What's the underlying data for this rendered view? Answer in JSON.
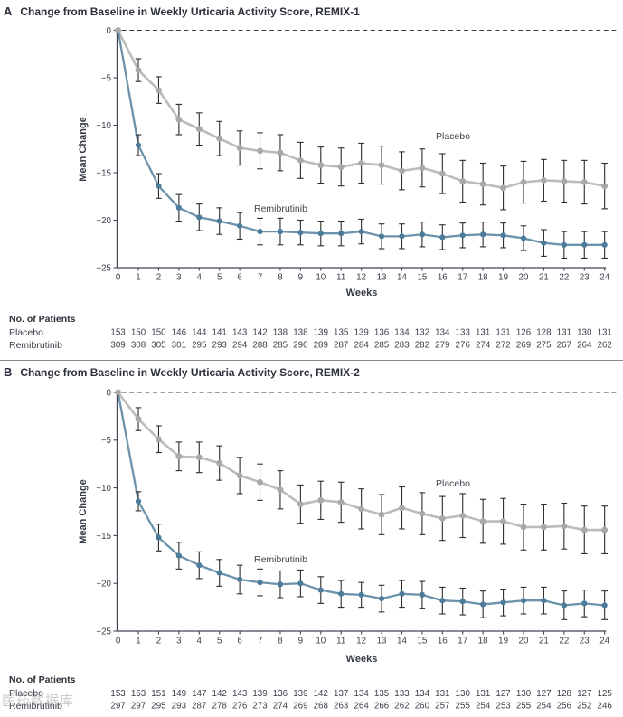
{
  "watermark": {
    "text": "医药数据库"
  },
  "colors": {
    "placebo_line": "#bcbcba",
    "placebo_marker": "#a9a9a7",
    "remibrutinib_line": "#6c93ab",
    "remibrutinib_marker": "#4d7c9b",
    "error_bar": "#2c2c2c",
    "axis": "#3f4450",
    "dash": "#3c3c3c",
    "text": "#3a3f4a"
  },
  "chart_data": [
    {
      "panel": "A",
      "type": "line",
      "title": "Change from Baseline in Weekly Urticaria Activity Score, REMIX-1",
      "xlabel": "Weeks",
      "ylabel": "Mean Change",
      "ylim": [
        -25,
        0
      ],
      "yticks": [
        0,
        -5,
        -10,
        -15,
        -20,
        -25
      ],
      "weeks": [
        0,
        1,
        2,
        3,
        4,
        5,
        6,
        7,
        8,
        9,
        10,
        11,
        12,
        13,
        14,
        15,
        16,
        17,
        18,
        19,
        20,
        21,
        22,
        23,
        24
      ],
      "zero_line_dashed": true,
      "series": [
        {
          "name": "Placebo",
          "values": [
            0,
            -4.2,
            -6.3,
            -9.4,
            -10.4,
            -11.4,
            -12.4,
            -12.7,
            -12.9,
            -13.7,
            -14.2,
            -14.4,
            -14.0,
            -14.2,
            -14.8,
            -14.5,
            -15.1,
            -15.9,
            -16.2,
            -16.6,
            -16.0,
            -15.8,
            -15.9,
            -16.0,
            -16.4
          ],
          "errors": [
            0,
            1.2,
            1.4,
            1.6,
            1.7,
            1.8,
            1.8,
            1.9,
            1.9,
            1.9,
            1.9,
            2.0,
            2.1,
            2.0,
            2.0,
            2.0,
            2.1,
            2.2,
            2.2,
            2.3,
            2.2,
            2.2,
            2.2,
            2.3,
            2.4
          ]
        },
        {
          "name": "Remibrutinib",
          "values": [
            0,
            -12.1,
            -16.4,
            -18.7,
            -19.7,
            -20.1,
            -20.6,
            -21.2,
            -21.2,
            -21.3,
            -21.4,
            -21.4,
            -21.2,
            -21.7,
            -21.7,
            -21.5,
            -21.8,
            -21.6,
            -21.5,
            -21.6,
            -21.9,
            -22.4,
            -22.6,
            -22.6,
            -22.6
          ],
          "errors": [
            0,
            1.1,
            1.3,
            1.4,
            1.4,
            1.4,
            1.4,
            1.4,
            1.4,
            1.3,
            1.3,
            1.3,
            1.3,
            1.3,
            1.3,
            1.3,
            1.3,
            1.3,
            1.3,
            1.3,
            1.3,
            1.4,
            1.4,
            1.4,
            1.4
          ]
        }
      ],
      "patients": {
        "label": "No. of Patients",
        "rows": [
          {
            "name": "Placebo",
            "counts": [
              153,
              150,
              150,
              146,
              144,
              141,
              143,
              142,
              138,
              138,
              139,
              135,
              139,
              136,
              134,
              132,
              134,
              133,
              131,
              131,
              126,
              128,
              131,
              130,
              131
            ]
          },
          {
            "name": "Remibrutinib",
            "counts": [
              309,
              308,
              305,
              301,
              295,
              293,
              294,
              288,
              285,
              290,
              289,
              287,
              284,
              285,
              283,
              282,
              279,
              276,
              274,
              272,
              269,
              275,
              267,
              264,
              262
            ]
          }
        ]
      }
    },
    {
      "panel": "B",
      "type": "line",
      "title": "Change from Baseline in Weekly Urticaria Activity Score, REMIX-2",
      "xlabel": "Weeks",
      "ylabel": "Mean Change",
      "ylim": [
        -25,
        0
      ],
      "yticks": [
        0,
        -5,
        -10,
        -15,
        -20,
        -25
      ],
      "weeks": [
        0,
        1,
        2,
        3,
        4,
        5,
        6,
        7,
        8,
        9,
        10,
        11,
        12,
        13,
        14,
        15,
        16,
        17,
        18,
        19,
        20,
        21,
        22,
        23,
        24
      ],
      "zero_line_dashed": true,
      "series": [
        {
          "name": "Placebo",
          "values": [
            0,
            -2.8,
            -4.9,
            -6.7,
            -6.8,
            -7.4,
            -8.7,
            -9.4,
            -10.2,
            -11.7,
            -11.3,
            -11.5,
            -12.2,
            -12.8,
            -12.1,
            -12.7,
            -13.2,
            -12.9,
            -13.5,
            -13.5,
            -14.1,
            -14.1,
            -14.0,
            -14.4,
            -14.4
          ],
          "errors": [
            0,
            1.2,
            1.4,
            1.5,
            1.6,
            1.8,
            1.9,
            1.9,
            2.0,
            2.0,
            2.0,
            2.1,
            2.1,
            2.1,
            2.2,
            2.2,
            2.3,
            2.3,
            2.3,
            2.4,
            2.4,
            2.4,
            2.4,
            2.5,
            2.5
          ]
        },
        {
          "name": "Remibrutinib",
          "values": [
            0,
            -11.4,
            -15.2,
            -17.1,
            -18.1,
            -18.9,
            -19.6,
            -19.9,
            -20.1,
            -20.0,
            -20.7,
            -21.1,
            -21.2,
            -21.6,
            -21.1,
            -21.2,
            -21.8,
            -21.9,
            -22.2,
            -22.0,
            -21.8,
            -21.8,
            -22.3,
            -22.1,
            -22.3
          ],
          "errors": [
            0,
            1.0,
            1.4,
            1.4,
            1.4,
            1.4,
            1.5,
            1.4,
            1.4,
            1.4,
            1.4,
            1.4,
            1.3,
            1.4,
            1.4,
            1.4,
            1.4,
            1.4,
            1.4,
            1.4,
            1.4,
            1.4,
            1.5,
            1.4,
            1.5
          ]
        }
      ],
      "patients": {
        "label": "No. of Patients",
        "rows": [
          {
            "name": "Placebo",
            "counts": [
              153,
              153,
              151,
              149,
              147,
              142,
              143,
              139,
              136,
              139,
              142,
              137,
              134,
              135,
              133,
              134,
              131,
              130,
              131,
              127,
              130,
              127,
              128,
              127,
              125
            ]
          },
          {
            "name": "Remibrutinib",
            "counts": [
              297,
              297,
              295,
              293,
              287,
              278,
              276,
              273,
              274,
              269,
              268,
              263,
              264,
              266,
              262,
              260,
              257,
              255,
              254,
              253,
              255,
              254,
              256,
              252,
              246
            ]
          }
        ]
      }
    }
  ]
}
